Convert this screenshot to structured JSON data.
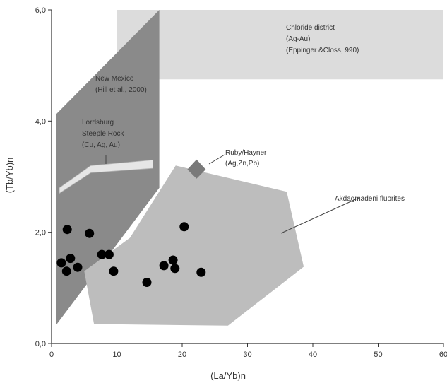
{
  "chart_data": {
    "type": "scatter",
    "xlabel": "(La/Yb)n",
    "ylabel": "(Tb/Yb)n",
    "xlim": [
      0,
      60
    ],
    "ylim": [
      0,
      6
    ],
    "x_ticks": [
      "0",
      "10",
      "20",
      "30",
      "40",
      "50",
      "60"
    ],
    "y_ticks": [
      "0,0",
      "2,0",
      "4,0",
      "6,0"
    ],
    "x_tick_values": [
      0,
      10,
      20,
      30,
      40,
      50,
      60
    ],
    "y_tick_values": [
      0,
      2,
      4,
      6
    ],
    "grid": false,
    "colors": {
      "points": "#000000",
      "akdagmadeni_field": "#bdbdbd",
      "new_mexico_field": "#8a8a8a",
      "chloride_field": "#dcdcdc",
      "lordsburg_field": "#e6e6e6",
      "ruby_hayner_marker": "#7a7a7a",
      "axis": "#333333"
    },
    "series": [
      {
        "points": [
          {
            "x": 1.5,
            "y": 1.45
          },
          {
            "x": 2.4,
            "y": 2.05
          },
          {
            "x": 2.3,
            "y": 1.3
          },
          {
            "x": 2.9,
            "y": 1.53
          },
          {
            "x": 4.0,
            "y": 1.37
          },
          {
            "x": 5.8,
            "y": 1.98
          },
          {
            "x": 7.7,
            "y": 1.6
          },
          {
            "x": 8.8,
            "y": 1.6
          },
          {
            "x": 9.5,
            "y": 1.3
          },
          {
            "x": 14.6,
            "y": 1.1
          },
          {
            "x": 17.2,
            "y": 1.4
          },
          {
            "x": 18.6,
            "y": 1.5
          },
          {
            "x": 18.9,
            "y": 1.35
          },
          {
            "x": 20.3,
            "y": 2.1
          },
          {
            "x": 22.9,
            "y": 1.28
          }
        ]
      }
    ],
    "fields": [
      {
        "id": "chloride",
        "lines": [
          "Chloride district",
          "(Ag-Au)",
          "(Eppinger &Closs, 990)"
        ],
        "polygon": [
          [
            10,
            6.0
          ],
          [
            60,
            6.0
          ],
          [
            60,
            4.75
          ],
          [
            10,
            4.75
          ]
        ]
      },
      {
        "id": "new_mexico",
        "lines": [
          "New Mexico",
          "(Hill et al., 2000)"
        ],
        "polygon": [
          [
            0.5,
            0.3
          ],
          [
            16.5,
            2.8
          ],
          [
            16.5,
            6.0
          ],
          [
            0.5,
            4.1
          ]
        ]
      },
      {
        "id": "lordsburg",
        "lines": [
          "Lordsburg",
          "Steeple Rock",
          "(Cu, Ag, Au)"
        ],
        "polygon": [
          [
            1.2,
            2.8
          ],
          [
            6,
            3.2
          ],
          [
            15.5,
            3.3
          ],
          [
            15.5,
            3.15
          ],
          [
            6,
            3.07
          ],
          [
            1.2,
            2.7
          ]
        ]
      },
      {
        "id": "akdagmadeni",
        "lines": [
          "Akdagmadeni fluorites"
        ],
        "polygon": [
          [
            12,
            1.9
          ],
          [
            19,
            3.2
          ],
          [
            36,
            2.73
          ],
          [
            38.6,
            1.38
          ],
          [
            27,
            0.32
          ],
          [
            6.5,
            0.35
          ],
          [
            5,
            1.3
          ]
        ]
      },
      {
        "id": "ruby_hayner",
        "lines": [
          "Ruby/Hayner",
          "(Ag,Zn,Pb)"
        ],
        "diamond_center": [
          22.2,
          3.13
        ]
      }
    ]
  }
}
